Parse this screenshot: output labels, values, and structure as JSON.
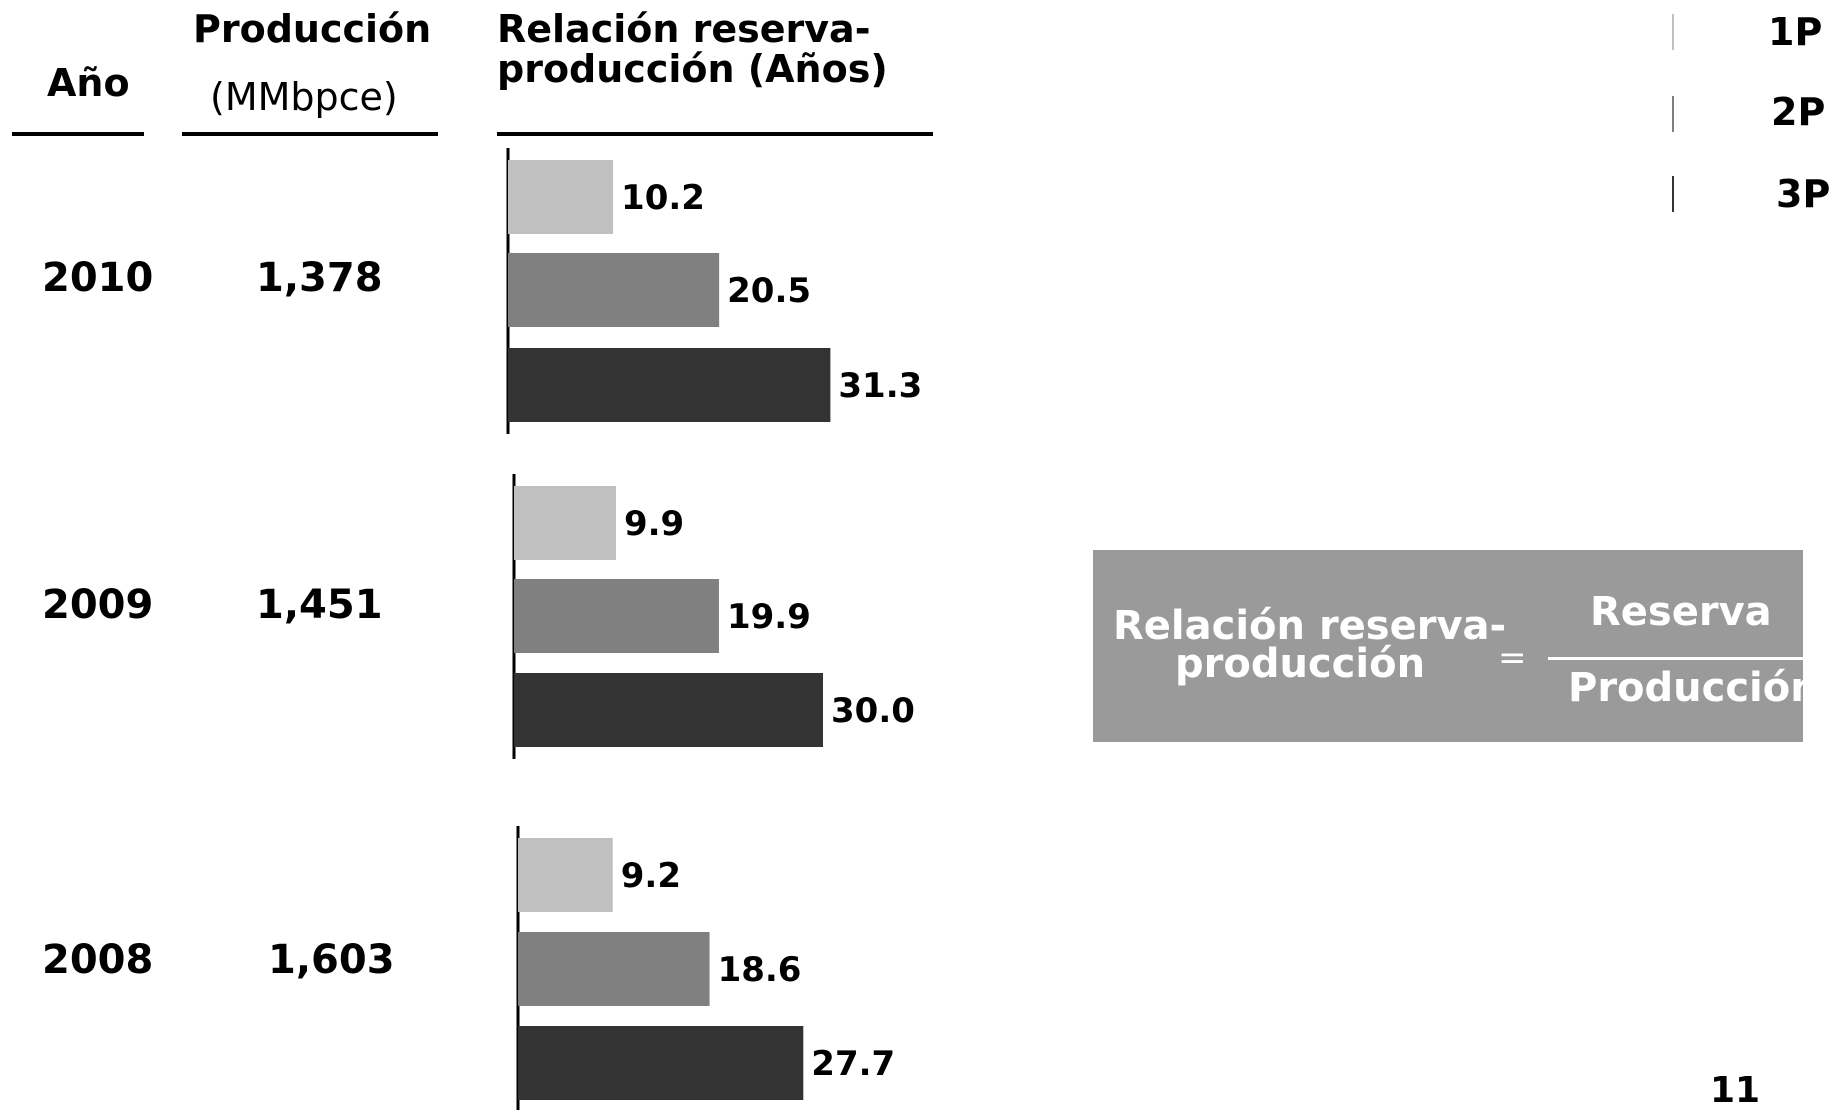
{
  "headers": {
    "year": "Año",
    "production": [
      "Producción",
      "(MMbpce)"
    ],
    "ratio": [
      "Relación reserva-",
      "producción (Años)"
    ]
  },
  "rows": [
    {
      "year": "2010",
      "production": "1,378"
    },
    {
      "year": "2009",
      "production": "1,451"
    },
    {
      "year": "2008",
      "production": "1,603"
    }
  ],
  "legend": [
    {
      "label": "1P",
      "color": "#c0c0c0"
    },
    {
      "label": "2P",
      "color": "#808080"
    },
    {
      "label": "3P",
      "color": "#333333"
    }
  ],
  "chart_data": {
    "type": "bar",
    "orientation": "horizontal",
    "categories": [
      "2010",
      "2009",
      "2008"
    ],
    "series": [
      {
        "name": "1P",
        "values": [
          10.2,
          9.9,
          9.2
        ],
        "labels": [
          "10.2",
          "9.9",
          "9.2"
        ],
        "color": "#c0c0c0"
      },
      {
        "name": "2P",
        "values": [
          20.5,
          19.9,
          18.6
        ],
        "labels": [
          "20.5",
          "19.9",
          "18.6"
        ],
        "color": "#808080"
      },
      {
        "name": "3P",
        "values": [
          31.3,
          30.0,
          27.7
        ],
        "labels": [
          "31.3",
          "30.0",
          "27.7"
        ],
        "color": "#333333"
      }
    ],
    "xlim": [
      0,
      36
    ],
    "grid": false,
    "legend_position": "top-right"
  },
  "formula": {
    "lhs": [
      "Relación reserva-",
      "producción"
    ],
    "equals": "=",
    "numerator": "Reserva",
    "denominator": "Producción"
  },
  "page_number": "11"
}
